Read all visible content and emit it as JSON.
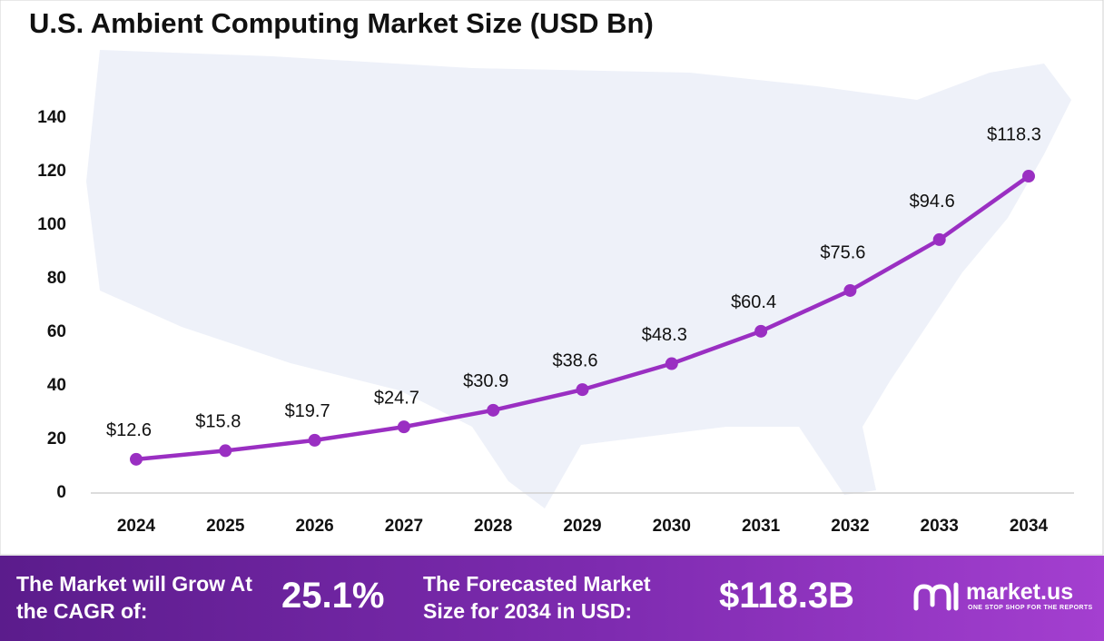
{
  "chart_data": {
    "type": "line",
    "title": "U.S. Ambient Computing Market Size (USD Bn)",
    "categories": [
      "2024",
      "2025",
      "2026",
      "2027",
      "2028",
      "2029",
      "2030",
      "2031",
      "2032",
      "2033",
      "2034"
    ],
    "values": [
      12.6,
      15.8,
      19.7,
      24.7,
      30.9,
      38.6,
      48.3,
      60.4,
      75.6,
      94.6,
      118.3
    ],
    "value_labels": [
      "$12.6",
      "$15.8",
      "$19.7",
      "$24.7",
      "$30.9",
      "$38.6",
      "$48.3",
      "$60.4",
      "$75.6",
      "$94.6",
      "$118.3"
    ],
    "color": "#9a2fc2",
    "ylim": [
      0,
      140
    ],
    "yticks": [
      0,
      20,
      40,
      60,
      80,
      100,
      120,
      140
    ],
    "grid": false
  },
  "footer": {
    "cagr_text": "The Market will Grow At the CAGR of:",
    "cagr_value": "25.1%",
    "forecast_text": "The Forecasted Market Size for 2034 in USD:",
    "forecast_value": "$118.3B",
    "brand": "market.us",
    "tagline": "ONE STOP SHOP FOR THE REPORTS"
  }
}
